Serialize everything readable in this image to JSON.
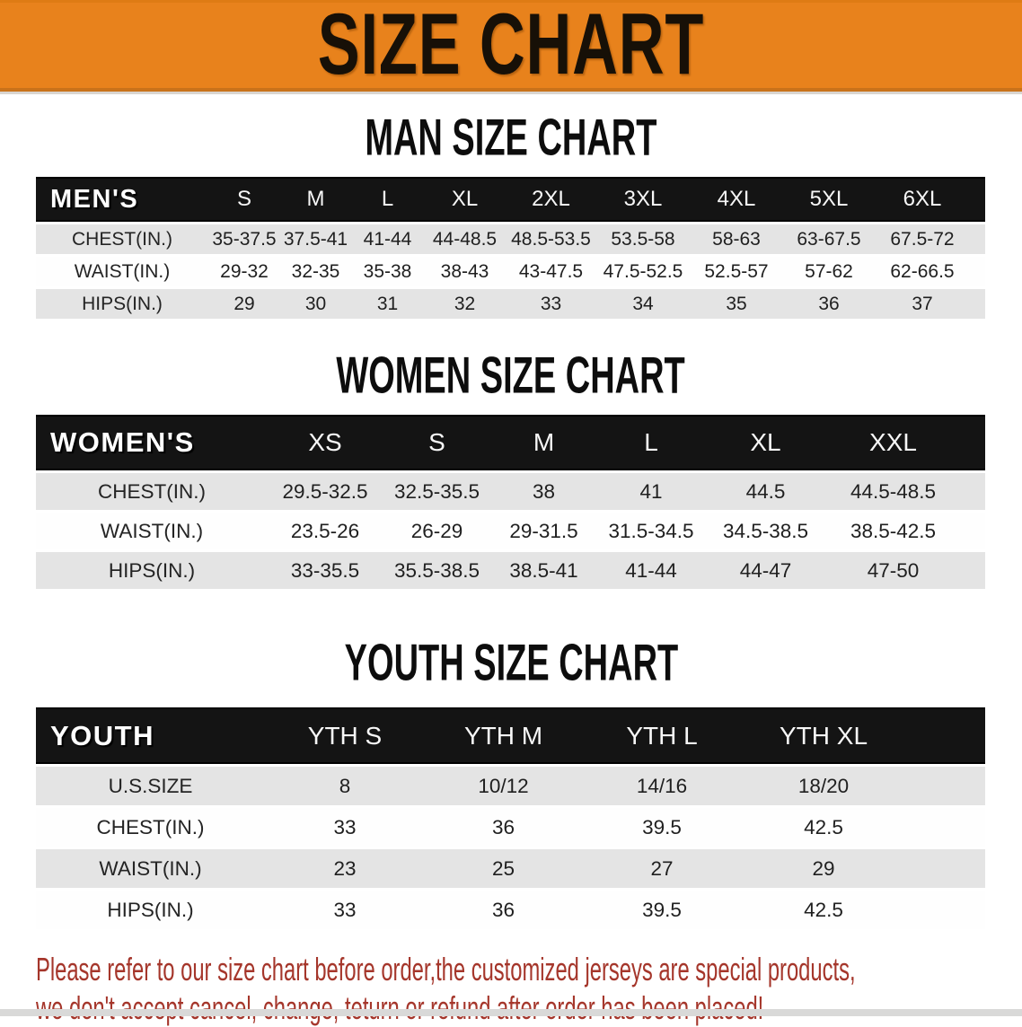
{
  "banner": {
    "title": "SIZE CHART"
  },
  "colors": {
    "banner_orange": "#E8821C",
    "table_header_black": "#141414",
    "row_gray": "#E4E4E4",
    "disclaimer_red": "#A5362B"
  },
  "sections": [
    {
      "heading": "MAN SIZE CHART",
      "group_label": "MEN'S",
      "columns": [
        "S",
        "M",
        "L",
        "XL",
        "2XL",
        "3XL",
        "4XL",
        "5XL",
        "6XL"
      ],
      "rows": [
        {
          "label": "CHEST(IN.)",
          "values": [
            "35-37.5",
            "37.5-41",
            "41-44",
            "44-48.5",
            "48.5-53.5",
            "53.5-58",
            "58-63",
            "63-67.5",
            "67.5-72"
          ]
        },
        {
          "label": "WAIST(IN.)",
          "values": [
            "29-32",
            "32-35",
            "35-38",
            "38-43",
            "43-47.5",
            "47.5-52.5",
            "52.5-57",
            "57-62",
            "62-66.5"
          ]
        },
        {
          "label": "HIPS(IN.)",
          "values": [
            "29",
            "30",
            "31",
            "32",
            "33",
            "34",
            "35",
            "36",
            "37"
          ]
        }
      ]
    },
    {
      "heading": "WOMEN SIZE CHART",
      "group_label": "WOMEN'S",
      "columns": [
        "XS",
        "S",
        "M",
        "L",
        "XL",
        "XXL"
      ],
      "rows": [
        {
          "label": "CHEST(IN.)",
          "values": [
            "29.5-32.5",
            "32.5-35.5",
            "38",
            "41",
            "44.5",
            "44.5-48.5"
          ]
        },
        {
          "label": "WAIST(IN.)",
          "values": [
            "23.5-26",
            "26-29",
            "29-31.5",
            "31.5-34.5",
            "34.5-38.5",
            "38.5-42.5"
          ]
        },
        {
          "label": "HIPS(IN.)",
          "values": [
            "33-35.5",
            "35.5-38.5",
            "38.5-41",
            "41-44",
            "44-47",
            "47-50"
          ]
        }
      ]
    },
    {
      "heading": "YOUTH SIZE CHART",
      "group_label": "YOUTH",
      "columns": [
        "YTH S",
        "YTH M",
        "YTH L",
        "YTH XL"
      ],
      "rows": [
        {
          "label": "U.S.SIZE",
          "values": [
            "8",
            "10/12",
            "14/16",
            "18/20"
          ]
        },
        {
          "label": "CHEST(IN.)",
          "values": [
            "33",
            "36",
            "39.5",
            "42.5"
          ]
        },
        {
          "label": "WAIST(IN.)",
          "values": [
            "23",
            "25",
            "27",
            "29"
          ]
        },
        {
          "label": "HIPS(IN.)",
          "values": [
            "33",
            "36",
            "39.5",
            "42.5"
          ]
        }
      ]
    }
  ],
  "footer": {
    "line1": "Please refer to our size chart before order,the customized jerseys are special products,",
    "line2": "we don't accept cancel, change, teturn or refund after order has been placed!"
  }
}
